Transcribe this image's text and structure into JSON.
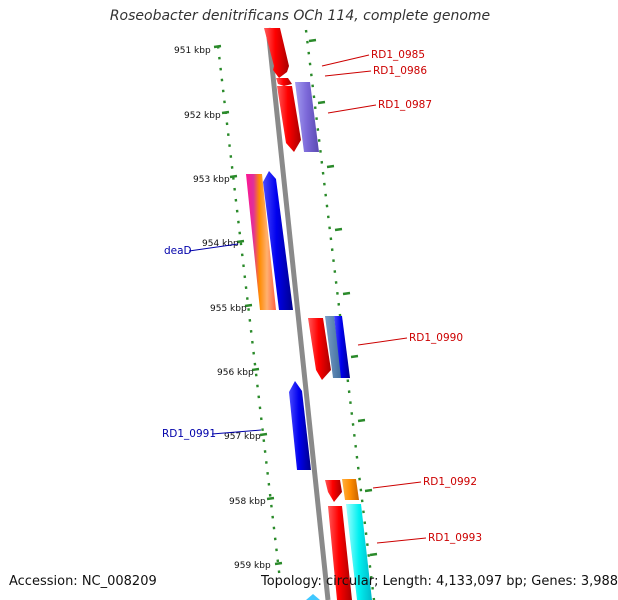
{
  "title": "Roseobacter denitrificans OCh 114, complete genome",
  "footer": {
    "accession": "Accession: NC_008209",
    "topology": "Topology: circular; Length: 4,133,097 bp; Genes: 3,988"
  },
  "colors": {
    "backbone": "#888888",
    "tick": "#2a8a2a",
    "label_forward": "#cc0000",
    "label_reverse": "#0000aa"
  },
  "kbp_labels": [
    "951 kbp",
    "952 kbp",
    "953 kbp",
    "954 kbp",
    "955 kbp",
    "956 kbp",
    "957 kbp",
    "958 kbp",
    "959 kbp"
  ],
  "gene_labels": [
    {
      "text": "RD1_0985",
      "strand": "forward"
    },
    {
      "text": "RD1_0986",
      "strand": "forward"
    },
    {
      "text": "RD1_0987",
      "strand": "forward"
    },
    {
      "text": "deaD",
      "strand": "reverse"
    },
    {
      "text": "RD1_0990",
      "strand": "forward"
    },
    {
      "text": "RD1_0991",
      "strand": "reverse"
    },
    {
      "text": "RD1_0992",
      "strand": "forward"
    },
    {
      "text": "RD1_0993",
      "strand": "forward"
    }
  ]
}
